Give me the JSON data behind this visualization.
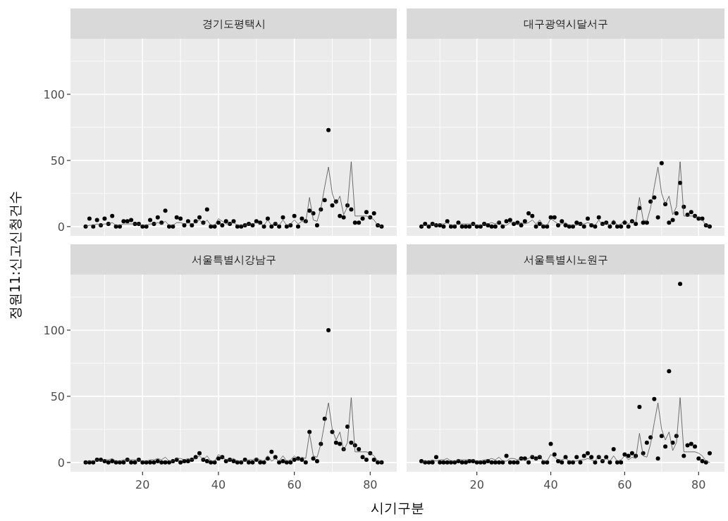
{
  "chart_data": [
    {
      "type": "scatter",
      "title": "경기도평택시",
      "tick_labels": "y",
      "grid": true,
      "x": [
        5,
        6,
        7,
        8,
        9,
        10,
        11,
        12,
        13,
        14,
        15,
        16,
        17,
        18,
        19,
        20,
        21,
        22,
        23,
        24,
        25,
        26,
        27,
        28,
        29,
        30,
        31,
        32,
        33,
        34,
        35,
        36,
        37,
        38,
        39,
        40,
        41,
        42,
        43,
        44,
        45,
        46,
        47,
        48,
        49,
        50,
        51,
        52,
        53,
        54,
        55,
        56,
        57,
        58,
        59,
        60,
        61,
        62,
        63,
        64,
        65,
        66,
        67,
        68,
        69,
        70,
        71,
        72,
        73,
        74,
        75,
        76,
        77,
        78,
        79,
        80,
        81,
        82,
        83
      ],
      "xlim": [
        1,
        87
      ],
      "ylim": [
        -7,
        142
      ],
      "xticks": [
        20,
        40,
        60,
        80
      ],
      "yticks": [
        0,
        50,
        100
      ],
      "series": [
        {
          "type": "scatter",
          "marker": "circle",
          "color": "#000000",
          "values": [
            0,
            6,
            0,
            5,
            1,
            6,
            2,
            8,
            0,
            0,
            4,
            4,
            5,
            2,
            2,
            0,
            0,
            5,
            2,
            7,
            3,
            12,
            0,
            0,
            7,
            6,
            1,
            4,
            1,
            4,
            7,
            3,
            13,
            0,
            0,
            3,
            1,
            4,
            2,
            4,
            0,
            0,
            1,
            2,
            1,
            4,
            3,
            0,
            6,
            0,
            2,
            0,
            7,
            0,
            1,
            8,
            0,
            6,
            4,
            12,
            10,
            1,
            13,
            20,
            73,
            16,
            19,
            8,
            7,
            16,
            13,
            3,
            3,
            6,
            11,
            7,
            10,
            1,
            0
          ]
        },
        {
          "type": "line",
          "color": "#4d4d4d",
          "values": [
            0,
            1,
            1,
            2,
            1,
            2,
            2,
            3,
            1,
            1,
            2,
            2,
            2,
            2,
            2,
            1,
            1,
            2,
            2,
            3,
            2,
            4,
            1,
            1,
            3,
            3,
            2,
            3,
            2,
            3,
            5,
            2,
            5,
            1,
            1,
            6,
            4,
            2,
            2,
            3,
            1,
            1,
            1,
            2,
            2,
            3,
            2,
            1,
            5,
            1,
            3,
            1,
            5,
            1,
            2,
            5,
            2,
            4,
            3,
            22,
            5,
            4,
            14,
            30,
            45,
            25,
            17,
            23,
            9,
            15,
            49,
            8,
            8,
            8,
            8,
            7,
            5,
            1,
            0
          ]
        }
      ]
    },
    {
      "type": "scatter",
      "title": "대구광역시달서구",
      "tick_labels": false,
      "grid": true,
      "x": [
        5,
        6,
        7,
        8,
        9,
        10,
        11,
        12,
        13,
        14,
        15,
        16,
        17,
        18,
        19,
        20,
        21,
        22,
        23,
        24,
        25,
        26,
        27,
        28,
        29,
        30,
        31,
        32,
        33,
        34,
        35,
        36,
        37,
        38,
        39,
        40,
        41,
        42,
        43,
        44,
        45,
        46,
        47,
        48,
        49,
        50,
        51,
        52,
        53,
        54,
        55,
        56,
        57,
        58,
        59,
        60,
        61,
        62,
        63,
        64,
        65,
        66,
        67,
        68,
        69,
        70,
        71,
        72,
        73,
        74,
        75,
        76,
        77,
        78,
        79,
        80,
        81,
        82,
        83
      ],
      "xlim": [
        1,
        87
      ],
      "ylim": [
        -7,
        142
      ],
      "xticks": [
        20,
        40,
        60,
        80
      ],
      "yticks": [
        0,
        50,
        100
      ],
      "series": [
        {
          "type": "scatter",
          "marker": "circle",
          "color": "#000000",
          "values": [
            0,
            2,
            0,
            2,
            1,
            1,
            0,
            4,
            0,
            0,
            3,
            0,
            0,
            0,
            2,
            0,
            0,
            2,
            1,
            0,
            0,
            3,
            0,
            4,
            5,
            2,
            3,
            1,
            4,
            10,
            8,
            0,
            2,
            0,
            0,
            7,
            7,
            1,
            4,
            1,
            0,
            0,
            3,
            2,
            0,
            6,
            1,
            0,
            7,
            2,
            3,
            0,
            3,
            0,
            0,
            3,
            0,
            4,
            2,
            14,
            3,
            3,
            19,
            22,
            7,
            48,
            17,
            3,
            5,
            10,
            33,
            15,
            9,
            11,
            8,
            6,
            6,
            1,
            0
          ]
        },
        {
          "type": "line",
          "color": "#4d4d4d",
          "values": [
            0,
            1,
            1,
            2,
            1,
            2,
            2,
            3,
            1,
            1,
            2,
            2,
            2,
            2,
            2,
            1,
            1,
            2,
            2,
            3,
            2,
            4,
            1,
            1,
            3,
            3,
            2,
            3,
            2,
            3,
            5,
            2,
            5,
            1,
            1,
            6,
            4,
            2,
            2,
            3,
            1,
            1,
            1,
            2,
            2,
            3,
            2,
            1,
            5,
            1,
            3,
            1,
            5,
            1,
            2,
            5,
            2,
            4,
            3,
            22,
            5,
            4,
            14,
            30,
            45,
            25,
            17,
            23,
            9,
            15,
            49,
            8,
            8,
            8,
            8,
            7,
            5,
            1,
            0
          ]
        }
      ]
    },
    {
      "type": "scatter",
      "title": "서울특별시강남구",
      "xlabel": "시기구분",
      "ylabel": "정원11:신고신청건수",
      "grid": true,
      "x": [
        5,
        6,
        7,
        8,
        9,
        10,
        11,
        12,
        13,
        14,
        15,
        16,
        17,
        18,
        19,
        20,
        21,
        22,
        23,
        24,
        25,
        26,
        27,
        28,
        29,
        30,
        31,
        32,
        33,
        34,
        35,
        36,
        37,
        38,
        39,
        40,
        41,
        42,
        43,
        44,
        45,
        46,
        47,
        48,
        49,
        50,
        51,
        52,
        53,
        54,
        55,
        56,
        57,
        58,
        59,
        60,
        61,
        62,
        63,
        64,
        65,
        66,
        67,
        68,
        69,
        70,
        71,
        72,
        73,
        74,
        75,
        76,
        77,
        78,
        79,
        80,
        81,
        82,
        83
      ],
      "xlim": [
        1,
        87
      ],
      "ylim": [
        -7,
        142
      ],
      "xticks": [
        20,
        40,
        60,
        80
      ],
      "yticks": [
        0,
        50,
        100
      ],
      "series": [
        {
          "type": "scatter",
          "marker": "circle",
          "color": "#000000",
          "values": [
            0,
            0,
            0,
            2,
            2,
            1,
            0,
            1,
            0,
            0,
            0,
            2,
            0,
            0,
            2,
            0,
            0,
            0,
            0,
            1,
            0,
            0,
            0,
            1,
            2,
            0,
            1,
            1,
            2,
            4,
            7,
            2,
            1,
            0,
            0,
            3,
            4,
            1,
            2,
            1,
            0,
            0,
            2,
            0,
            0,
            2,
            0,
            0,
            3,
            8,
            4,
            0,
            1,
            0,
            0,
            2,
            3,
            2,
            0,
            23,
            3,
            1,
            14,
            33,
            100,
            23,
            15,
            14,
            10,
            27,
            15,
            13,
            10,
            4,
            2,
            7,
            2,
            0,
            0
          ]
        },
        {
          "type": "line",
          "color": "#4d4d4d",
          "values": [
            0,
            1,
            1,
            2,
            1,
            2,
            2,
            3,
            1,
            1,
            2,
            2,
            2,
            2,
            2,
            1,
            1,
            2,
            2,
            3,
            2,
            4,
            1,
            1,
            3,
            3,
            2,
            3,
            2,
            3,
            5,
            2,
            5,
            1,
            1,
            6,
            4,
            2,
            2,
            3,
            1,
            1,
            1,
            2,
            2,
            3,
            2,
            1,
            5,
            1,
            3,
            1,
            5,
            1,
            2,
            5,
            2,
            4,
            3,
            22,
            5,
            4,
            14,
            30,
            45,
            25,
            17,
            23,
            9,
            15,
            49,
            8,
            8,
            8,
            8,
            7,
            5,
            1,
            0
          ]
        }
      ]
    },
    {
      "type": "scatter",
      "title": "서울특별시노원구",
      "tick_labels": "x",
      "grid": true,
      "x": [
        5,
        6,
        7,
        8,
        9,
        10,
        11,
        12,
        13,
        14,
        15,
        16,
        17,
        18,
        19,
        20,
        21,
        22,
        23,
        24,
        25,
        26,
        27,
        28,
        29,
        30,
        31,
        32,
        33,
        34,
        35,
        36,
        37,
        38,
        39,
        40,
        41,
        42,
        43,
        44,
        45,
        46,
        47,
        48,
        49,
        50,
        51,
        52,
        53,
        54,
        55,
        56,
        57,
        58,
        59,
        60,
        61,
        62,
        63,
        64,
        65,
        66,
        67,
        68,
        69,
        70,
        71,
        72,
        73,
        74,
        75,
        76,
        77,
        78,
        79,
        80,
        81,
        82,
        83
      ],
      "xlim": [
        1,
        87
      ],
      "ylim": [
        -7,
        142
      ],
      "xticks": [
        20,
        40,
        60,
        80
      ],
      "yticks": [
        0,
        50,
        100
      ],
      "series": [
        {
          "type": "scatter",
          "marker": "circle",
          "color": "#000000",
          "values": [
            1,
            0,
            0,
            0,
            4,
            0,
            0,
            0,
            0,
            0,
            1,
            0,
            0,
            1,
            1,
            0,
            0,
            0,
            1,
            0,
            0,
            0,
            0,
            5,
            0,
            0,
            0,
            3,
            3,
            0,
            4,
            3,
            4,
            0,
            0,
            14,
            6,
            1,
            0,
            4,
            0,
            0,
            4,
            0,
            5,
            7,
            4,
            0,
            4,
            1,
            4,
            0,
            10,
            0,
            0,
            6,
            5,
            7,
            5,
            42,
            7,
            15,
            19,
            48,
            3,
            20,
            12,
            69,
            15,
            20,
            135,
            5,
            13,
            14,
            12,
            3,
            1,
            0,
            7
          ]
        },
        {
          "type": "line",
          "color": "#4d4d4d",
          "values": [
            0,
            1,
            1,
            2,
            1,
            2,
            2,
            3,
            1,
            1,
            2,
            2,
            2,
            2,
            2,
            1,
            1,
            2,
            2,
            3,
            2,
            4,
            1,
            1,
            3,
            3,
            2,
            3,
            2,
            3,
            5,
            2,
            5,
            1,
            1,
            6,
            4,
            2,
            2,
            3,
            1,
            1,
            1,
            2,
            2,
            3,
            2,
            1,
            5,
            1,
            3,
            1,
            5,
            1,
            2,
            5,
            2,
            4,
            3,
            22,
            5,
            4,
            14,
            30,
            45,
            25,
            17,
            23,
            9,
            15,
            49,
            8,
            8,
            8,
            8,
            7,
            5,
            1,
            0
          ]
        }
      ]
    }
  ]
}
